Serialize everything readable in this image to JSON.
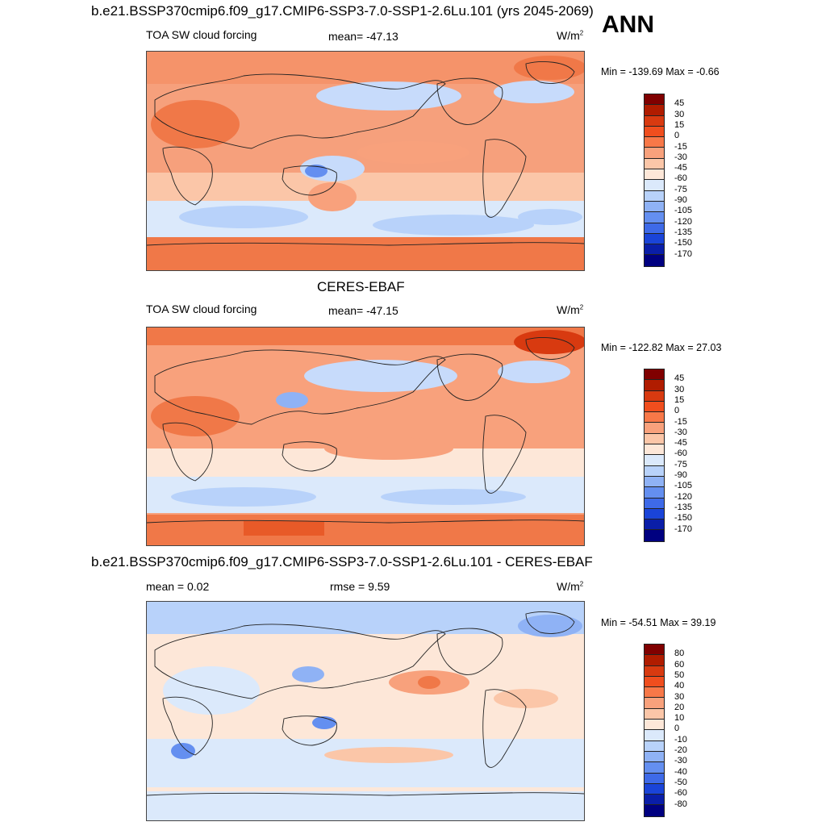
{
  "season": "ANN",
  "panel1": {
    "title": "b.e21.BSSP370cmip6.f09_g17.CMIP6-SSP3-7.0-SSP1-2.6Lu.101 (yrs 2045-2069)",
    "left": "TOA SW cloud forcing",
    "center": "mean= -47.13",
    "units": "W/m",
    "units_sup": "2",
    "minmax": "Min = -139.69 Max =  -0.66"
  },
  "panel2": {
    "title": "CERES-EBAF",
    "left": "TOA SW cloud forcing",
    "center": "mean= -47.15",
    "units": "W/m",
    "units_sup": "2",
    "minmax": "Min = -122.82 Max =  27.03"
  },
  "panel3": {
    "title": "b.e21.BSSP370cmip6.f09_g17.CMIP6-SSP3-7.0-SSP1-2.6Lu.101 - CERES-EBAF",
    "left": "mean =   0.02",
    "center": "rmse =   9.59",
    "units": "W/m",
    "units_sup": "2",
    "minmax": "Min = -54.51 Max =  39.19"
  },
  "colorbar_main": {
    "labels": [
      "45",
      "30",
      "15",
      "0",
      "-15",
      "-30",
      "-45",
      "-60",
      "-75",
      "-90",
      "-105",
      "-120",
      "-135",
      "-150",
      "-170"
    ],
    "colors": [
      "#800000",
      "#b01c00",
      "#d83a10",
      "#f04e1e",
      "#f87848",
      "#f8a17c",
      "#fbc6a8",
      "#fde7d8",
      "#dbe9fb",
      "#b8d2fa",
      "#8fb2f5",
      "#648ff0",
      "#3e6ae8",
      "#1a44d8",
      "#0a1ea8",
      "#000080"
    ]
  },
  "colorbar_diff": {
    "labels": [
      "80",
      "60",
      "50",
      "40",
      "30",
      "20",
      "10",
      "0",
      "-10",
      "-20",
      "-30",
      "-40",
      "-50",
      "-60",
      "-80"
    ],
    "colors": [
      "#800000",
      "#b01c00",
      "#d83a10",
      "#f04e1e",
      "#f87848",
      "#f8a17c",
      "#fbc6a8",
      "#fde7d8",
      "#dbe9fb",
      "#b8d2fa",
      "#8fb2f5",
      "#648ff0",
      "#3e6ae8",
      "#1a44d8",
      "#0a1ea8",
      "#000080"
    ]
  }
}
